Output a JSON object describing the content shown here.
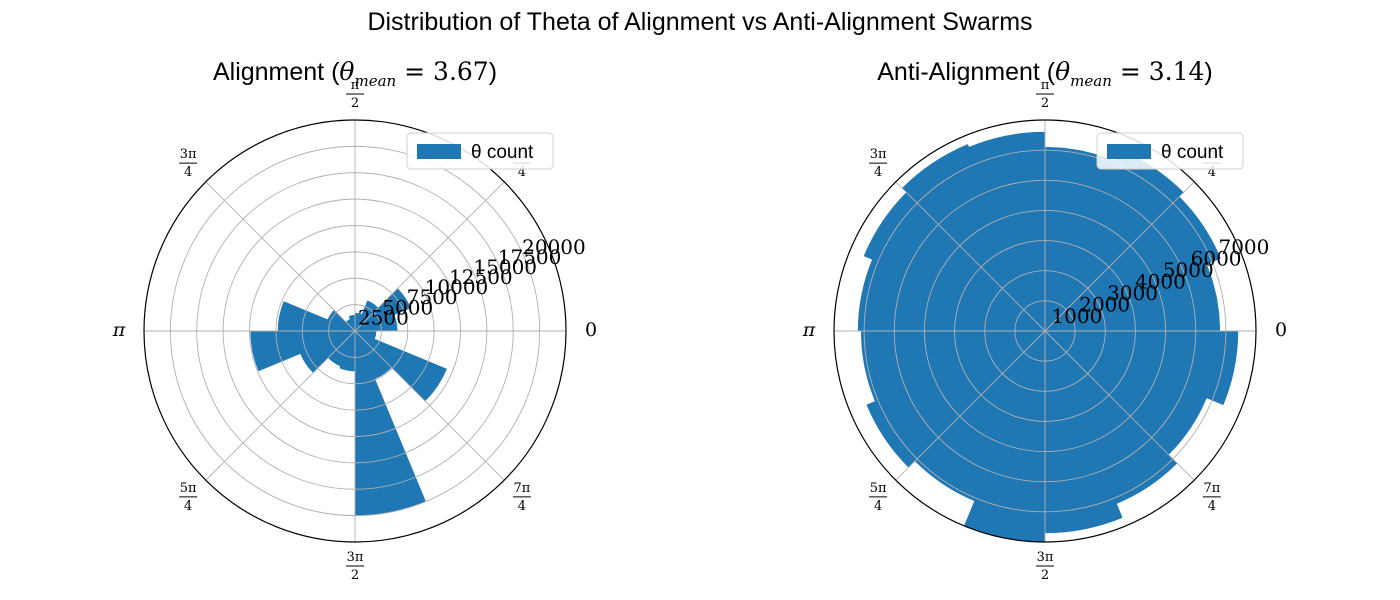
{
  "figure": {
    "suptitle": "Distribution of Theta of Alignment vs Anti-Alignment Swarms"
  },
  "chart_data": [
    {
      "type": "polar-bar",
      "title_prefix": "Alignment (",
      "title_symbol": "θ",
      "title_subscript": "mean",
      "title_eq": " = 3.67",
      "title_suffix": ")",
      "bar_color": "#1f77b4",
      "legend": {
        "label": "θ count",
        "placement": "upper-right"
      },
      "rlim": [
        0,
        20000
      ],
      "r_ticks": [
        2500,
        5000,
        7500,
        10000,
        12500,
        15000,
        17500,
        20000
      ],
      "r_tick_labels": [
        "2500",
        "5000",
        "7500",
        "10000",
        "12500",
        "15000",
        "17500",
        "20000"
      ],
      "theta_tick_labels": [
        "0",
        "π/4",
        "π/2",
        "3π/4",
        "π",
        "5π/4",
        "3π/2",
        "7π/4"
      ],
      "grid": true,
      "bins": 16,
      "values": [
        4000,
        5700,
        3100,
        1700,
        1500,
        1200,
        2800,
        7300,
        9900,
        5600,
        3600,
        3800,
        17500,
        4900,
        9400,
        2000
      ]
    },
    {
      "type": "polar-bar",
      "title_prefix": "Anti-Alignment (",
      "title_symbol": "θ",
      "title_subscript": "mean",
      "title_eq": " = 3.14",
      "title_suffix": ")",
      "bar_color": "#1f77b4",
      "legend": {
        "label": "θ count",
        "placement": "upper-right"
      },
      "rlim": [
        0,
        7000
      ],
      "r_ticks": [
        1000,
        2000,
        3000,
        4000,
        5000,
        6000,
        7000
      ],
      "r_tick_labels": [
        "1000",
        "2000",
        "3000",
        "4000",
        "5000",
        "6000",
        "7000"
      ],
      "theta_tick_labels": [
        "0",
        "π/4",
        "π/2",
        "3π/4",
        "π",
        "5π/4",
        "3π/2",
        "7π/4"
      ],
      "grid": true,
      "bins": 16,
      "values": [
        5800,
        6300,
        6500,
        6100,
        6600,
        6700,
        6500,
        6200,
        6100,
        6400,
        6100,
        7000,
        6700,
        6200,
        5800,
        6400
      ]
    }
  ]
}
